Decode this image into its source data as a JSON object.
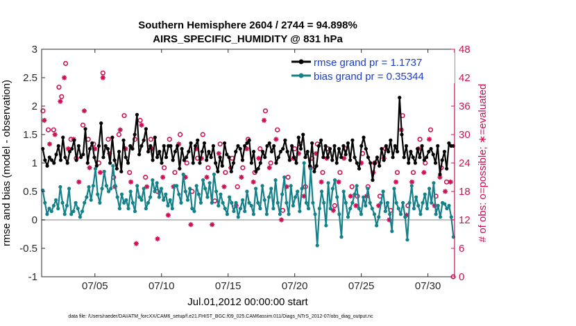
{
  "chart_data": {
    "type": "line",
    "title_line1": "Southern Hemisphere 2604 / 2744 = 94.898%",
    "title_line2": "AIRS_SPECIFIC_HUMIDITY @ 831 hPa",
    "xlabel": "Jul.01,2012 00:00:00 start",
    "ylabel": "rmse and bias (model - observation)",
    "ylabel_right": "# of obs: o=possible; ∗=evaluated",
    "footnote": "data file: /Users/raeder/DAI/ATM_forcXX/CAM6_setup/f.e21.FHIST_BGC.f09_025.CAM6assim.011/Diags_NTrS_2012-07/obs_diag_output.nc",
    "xlim": [
      1,
      32
    ],
    "ylim": [
      -1,
      3
    ],
    "ylim_right": [
      0,
      48
    ],
    "x_ticks": [
      {
        "x": 5,
        "label": "07/05"
      },
      {
        "x": 10,
        "label": "07/10"
      },
      {
        "x": 15,
        "label": "07/15"
      },
      {
        "x": 20,
        "label": "07/20"
      },
      {
        "x": 25,
        "label": "07/25"
      },
      {
        "x": 30,
        "label": "07/30"
      }
    ],
    "y_ticks": [
      -1,
      -0.5,
      0,
      0.5,
      1,
      1.5,
      2,
      2.5,
      3
    ],
    "y_tick_labels": [
      "-1",
      "-0.5",
      "0",
      "0.5",
      "1",
      "1.5",
      "2",
      "2.5",
      "3"
    ],
    "y_ticks_right": [
      0,
      6,
      12,
      18,
      24,
      30,
      36,
      42,
      48
    ],
    "y_tick_labels_right": [
      "0",
      "6",
      "12",
      "18",
      "24",
      "30",
      "36",
      "42",
      "48"
    ],
    "grid": false,
    "legend_placement": "top-right",
    "series": [
      {
        "name": "rmse grand pr = 1.1737",
        "color": "#000000",
        "marker": "dot",
        "axis": "left",
        "values": [
          1.25,
          1.05,
          0.95,
          1.1,
          1.05,
          1.0,
          1.15,
          1.3,
          1.05,
          1.45,
          1.1,
          1.0,
          1.2,
          1.25,
          1.4,
          1.05,
          1.3,
          1.1,
          1.15,
          1.6,
          1.0,
          1.25,
          1.35,
          1.1,
          0.95,
          1.3,
          1.7,
          1.1,
          1.3,
          1.25,
          1.0,
          1.45,
          1.05,
          0.9,
          1.2,
          0.85,
          1.4,
          1.1,
          1.0,
          1.3,
          1.25,
          1.5,
          1.85,
          1.15,
          1.3,
          1.4,
          1.6,
          1.2,
          1.3,
          1.05,
          1.45,
          1.1,
          1.2,
          1.0,
          1.3,
          1.1,
          1.3,
          1.3,
          1.05,
          1.2,
          1.3,
          0.9,
          1.25,
          1.05,
          1.1,
          1.2,
          1.35,
          1.0,
          1.3,
          1.4,
          1.0,
          1.2,
          1.35,
          1.05,
          1.2,
          1.1,
          1.3,
          1.0,
          0.85,
          1.1,
          0.95,
          1.35,
          1.15,
          1.1,
          0.85,
          1.0,
          1.2,
          1.3,
          1.25,
          1.05,
          1.3,
          1.35,
          1.4,
          1.0,
          1.2,
          0.85,
          0.9,
          1.0,
          1.2,
          1.1,
          1.3,
          1.35,
          1.2,
          1.3,
          1.0,
          1.1,
          1.2,
          1.25,
          1.4,
          1.2,
          1.05,
          1.3,
          1.1,
          1.0,
          1.45,
          1.25,
          1.5,
          1.1,
          1.2,
          0.95,
          1.35,
          0.85,
          0.95,
          1.3,
          1.4,
          1.1,
          1.3,
          1.1,
          1.25,
          1.05,
          1.3,
          1.0,
          1.25,
          1.1,
          1.3,
          1.15,
          1.35,
          1.05,
          1.4,
          1.1,
          1.0,
          0.9,
          1.3,
          1.45,
          1.25,
          1.1,
          1.0,
          0.7,
          1.0,
          1.1,
          0.95,
          1.25,
          1.05,
          1.3,
          1.2,
          1.4,
          1.1,
          1.3,
          1.2,
          2.15,
          1.5,
          1.1,
          1.3,
          1.0,
          1.2,
          1.1,
          1.0,
          1.25,
          1.1,
          1.3,
          1.05,
          1.1,
          1.2,
          1.25,
          1.15,
          1.0,
          1.3,
          0.8,
          1.05,
          1.2,
          0.9,
          1.35,
          1.3,
          1.3
        ],
        "values_note": ""
      },
      {
        "name": "bias grand pr = 0.35344",
        "color": "#14808a",
        "marker": "dot",
        "axis": "left",
        "values": [
          0.52,
          0.3,
          0.1,
          0.2,
          0.15,
          0.25,
          0.35,
          0.2,
          0.58,
          0.3,
          0.1,
          0.25,
          0.55,
          0.1,
          0.15,
          0.3,
          0.2,
          0.05,
          0.15,
          0.3,
          0.4,
          0.58,
          0.35,
          0.6,
          0.9,
          0.45,
          0.3,
          0.55,
          0.85,
          0.6,
          0.5,
          0.55,
          0.95,
          0.6,
          0.4,
          0.2,
          0.45,
          0.3,
          0.35,
          0.2,
          0.5,
          0.3,
          0.15,
          0.6,
          0.4,
          0.35,
          0.55,
          0.2,
          0.3,
          0.4,
          0.7,
          0.5,
          0.65,
          0.4,
          0.55,
          0.35,
          0.45,
          0.25,
          0.35,
          0.2,
          0.6,
          0.6,
          0.45,
          0.3,
          0.8,
          0.5,
          0.35,
          0.55,
          0.2,
          0.15,
          0.6,
          0.45,
          0.3,
          0.7,
          0.55,
          0.4,
          0.65,
          0.3,
          0.8,
          0.5,
          0.25,
          0.45,
          0.3,
          0.2,
          0.1,
          0.4,
          0.3,
          0.15,
          0.3,
          0.05,
          0.2,
          0.35,
          0.15,
          0.5,
          0.3,
          0.25,
          0.1,
          0.55,
          0.3,
          0.2,
          0.6,
          0.35,
          0.1,
          0.4,
          0.55,
          0.2,
          0.7,
          0.3,
          0.1,
          0.45,
          0.75,
          0.3,
          0.1,
          0.6,
          0.25,
          0.4,
          0.5,
          0.15,
          0.55,
          1.0,
          0.3,
          0.2,
          0.9,
          0.3,
          0.1,
          -0.45,
          0.2,
          0.5,
          0.3,
          -0.1,
          0.65,
          0.2,
          0.55,
          0.7,
          0.4,
          0.1,
          -0.3,
          0.5,
          0.3,
          0.05,
          0.2,
          0.3,
          0.45,
          0.6,
          0.2,
          0.1,
          0.4,
          0.25,
          0.55,
          0.3,
          0.2,
          0.1,
          -0.1,
          0.05,
          0.3,
          0.5,
          0.15,
          0.3,
          0.1,
          -0.2,
          0.55,
          0.3,
          0.2,
          0.1,
          0.3,
          0.05,
          -0.35,
          0.3,
          0.6,
          0.2,
          0.4,
          0.25,
          0.1,
          0.3,
          0.45,
          0.2,
          0.55,
          0.3,
          0.65,
          0.1,
          0.25,
          0.05,
          0.3,
          0.28,
          0.2,
          0.25,
          0.05,
          -0.3
        ],
        "values_note": ""
      }
    ],
    "obs_possible_marker": "o",
    "obs_evaluated_marker": "∗",
    "obs_color": "#cc0f55",
    "obs_possible": [
      {
        "x": 1.1,
        "y": 35
      },
      {
        "x": 1.5,
        "y": 31
      },
      {
        "x": 1.9,
        "y": 31
      },
      {
        "x": 2.3,
        "y": 40
      },
      {
        "x": 2.5,
        "y": 38
      },
      {
        "x": 2.8,
        "y": 45
      },
      {
        "x": 3.2,
        "y": 29
      },
      {
        "x": 3.6,
        "y": 25
      },
      {
        "x": 4.1,
        "y": 32
      },
      {
        "x": 4.5,
        "y": 29
      },
      {
        "x": 4.9,
        "y": 28
      },
      {
        "x": 5.3,
        "y": 24
      },
      {
        "x": 5.6,
        "y": 43
      },
      {
        "x": 6.0,
        "y": 29
      },
      {
        "x": 6.4,
        "y": 21
      },
      {
        "x": 6.8,
        "y": 30
      },
      {
        "x": 7.2,
        "y": 34
      },
      {
        "x": 7.6,
        "y": 22
      },
      {
        "x": 8.0,
        "y": 29
      },
      {
        "x": 8.4,
        "y": 33
      },
      {
        "x": 8.8,
        "y": 21
      },
      {
        "x": 9.2,
        "y": 29
      },
      {
        "x": 9.7,
        "y": 18
      },
      {
        "x": 10.2,
        "y": 23
      },
      {
        "x": 10.6,
        "y": 29
      },
      {
        "x": 11.0,
        "y": 22
      },
      {
        "x": 11.4,
        "y": 30
      },
      {
        "x": 11.9,
        "y": 24
      },
      {
        "x": 12.3,
        "y": 18
      },
      {
        "x": 12.7,
        "y": 25
      },
      {
        "x": 13.1,
        "y": 30
      },
      {
        "x": 13.5,
        "y": 23
      },
      {
        "x": 14.0,
        "y": 16
      },
      {
        "x": 14.4,
        "y": 28
      },
      {
        "x": 14.8,
        "y": 22
      },
      {
        "x": 15.3,
        "y": 25
      },
      {
        "x": 15.7,
        "y": 19
      },
      {
        "x": 16.1,
        "y": 23
      },
      {
        "x": 16.5,
        "y": 29
      },
      {
        "x": 17.0,
        "y": 22
      },
      {
        "x": 17.4,
        "y": 27
      },
      {
        "x": 17.8,
        "y": 35
      },
      {
        "x": 18.2,
        "y": 24
      },
      {
        "x": 18.7,
        "y": 31
      },
      {
        "x": 19.1,
        "y": 14
      },
      {
        "x": 19.5,
        "y": 21
      },
      {
        "x": 20.0,
        "y": 27
      },
      {
        "x": 20.4,
        "y": 28
      },
      {
        "x": 20.8,
        "y": 19
      },
      {
        "x": 21.3,
        "y": 25
      },
      {
        "x": 21.7,
        "y": 28
      },
      {
        "x": 22.1,
        "y": 22
      },
      {
        "x": 22.5,
        "y": 27
      },
      {
        "x": 23.0,
        "y": 15
      },
      {
        "x": 23.4,
        "y": 22
      },
      {
        "x": 23.8,
        "y": 27
      },
      {
        "x": 24.3,
        "y": 19
      },
      {
        "x": 24.7,
        "y": 17
      },
      {
        "x": 25.1,
        "y": 26
      },
      {
        "x": 25.5,
        "y": 19
      },
      {
        "x": 26.0,
        "y": 24
      },
      {
        "x": 26.4,
        "y": 17
      },
      {
        "x": 26.8,
        "y": 27
      },
      {
        "x": 27.2,
        "y": 14
      },
      {
        "x": 27.7,
        "y": 22
      },
      {
        "x": 28.1,
        "y": 34
      },
      {
        "x": 28.5,
        "y": 15
      },
      {
        "x": 28.9,
        "y": 22
      },
      {
        "x": 29.4,
        "y": 29
      },
      {
        "x": 29.8,
        "y": 24
      },
      {
        "x": 30.2,
        "y": 31
      },
      {
        "x": 30.6,
        "y": 17
      },
      {
        "x": 31.0,
        "y": 23
      },
      {
        "x": 31.4,
        "y": 20
      },
      {
        "x": 31.9,
        "y": 0
      }
    ],
    "obs_evaluated": [
      {
        "x": 1.2,
        "y": 33
      },
      {
        "x": 1.6,
        "y": 28
      },
      {
        "x": 2.0,
        "y": 30
      },
      {
        "x": 2.4,
        "y": 37
      },
      {
        "x": 2.7,
        "y": 42
      },
      {
        "x": 3.0,
        "y": 27
      },
      {
        "x": 3.4,
        "y": 29
      },
      {
        "x": 3.8,
        "y": 20
      },
      {
        "x": 4.2,
        "y": 35
      },
      {
        "x": 4.6,
        "y": 23
      },
      {
        "x": 5.0,
        "y": 27
      },
      {
        "x": 5.4,
        "y": 22
      },
      {
        "x": 5.6,
        "y": 42
      },
      {
        "x": 6.1,
        "y": 26
      },
      {
        "x": 6.5,
        "y": 19
      },
      {
        "x": 6.9,
        "y": 31
      },
      {
        "x": 7.3,
        "y": 27
      },
      {
        "x": 7.7,
        "y": 20
      },
      {
        "x": 8.1,
        "y": 7
      },
      {
        "x": 8.5,
        "y": 32
      },
      {
        "x": 8.9,
        "y": 19
      },
      {
        "x": 9.3,
        "y": 27
      },
      {
        "x": 9.7,
        "y": 8
      },
      {
        "x": 10.1,
        "y": 21
      },
      {
        "x": 10.5,
        "y": 13
      },
      {
        "x": 10.9,
        "y": 19
      },
      {
        "x": 11.3,
        "y": 28
      },
      {
        "x": 11.8,
        "y": 21
      },
      {
        "x": 12.2,
        "y": 11
      },
      {
        "x": 12.6,
        "y": 27
      },
      {
        "x": 13.0,
        "y": 25
      },
      {
        "x": 13.4,
        "y": 21
      },
      {
        "x": 13.8,
        "y": 11
      },
      {
        "x": 14.3,
        "y": 26
      },
      {
        "x": 14.7,
        "y": 19
      },
      {
        "x": 15.2,
        "y": 23
      },
      {
        "x": 15.6,
        "y": 15
      },
      {
        "x": 16.0,
        "y": 21
      },
      {
        "x": 16.4,
        "y": 27
      },
      {
        "x": 16.9,
        "y": 20
      },
      {
        "x": 17.3,
        "y": 25
      },
      {
        "x": 17.7,
        "y": 33
      },
      {
        "x": 18.1,
        "y": 23
      },
      {
        "x": 18.6,
        "y": 29
      },
      {
        "x": 19.0,
        "y": 12
      },
      {
        "x": 19.4,
        "y": 19
      },
      {
        "x": 19.9,
        "y": 25
      },
      {
        "x": 20.3,
        "y": 26
      },
      {
        "x": 20.7,
        "y": 17
      },
      {
        "x": 21.2,
        "y": 23
      },
      {
        "x": 21.6,
        "y": 26
      },
      {
        "x": 22.0,
        "y": 20
      },
      {
        "x": 22.4,
        "y": 25
      },
      {
        "x": 22.9,
        "y": 14
      },
      {
        "x": 23.3,
        "y": 20
      },
      {
        "x": 23.7,
        "y": 25
      },
      {
        "x": 24.2,
        "y": 17
      },
      {
        "x": 24.6,
        "y": 15
      },
      {
        "x": 25.0,
        "y": 24
      },
      {
        "x": 25.4,
        "y": 17
      },
      {
        "x": 25.9,
        "y": 22
      },
      {
        "x": 26.3,
        "y": 15
      },
      {
        "x": 26.7,
        "y": 25
      },
      {
        "x": 27.1,
        "y": 12
      },
      {
        "x": 27.6,
        "y": 20
      },
      {
        "x": 28.0,
        "y": 31
      },
      {
        "x": 28.4,
        "y": 13
      },
      {
        "x": 28.8,
        "y": 20
      },
      {
        "x": 29.3,
        "y": 27
      },
      {
        "x": 29.7,
        "y": 22
      },
      {
        "x": 30.1,
        "y": 29
      },
      {
        "x": 30.5,
        "y": 15
      },
      {
        "x": 30.9,
        "y": 21
      },
      {
        "x": 31.3,
        "y": 18
      },
      {
        "x": 31.7,
        "y": 20
      }
    ]
  }
}
